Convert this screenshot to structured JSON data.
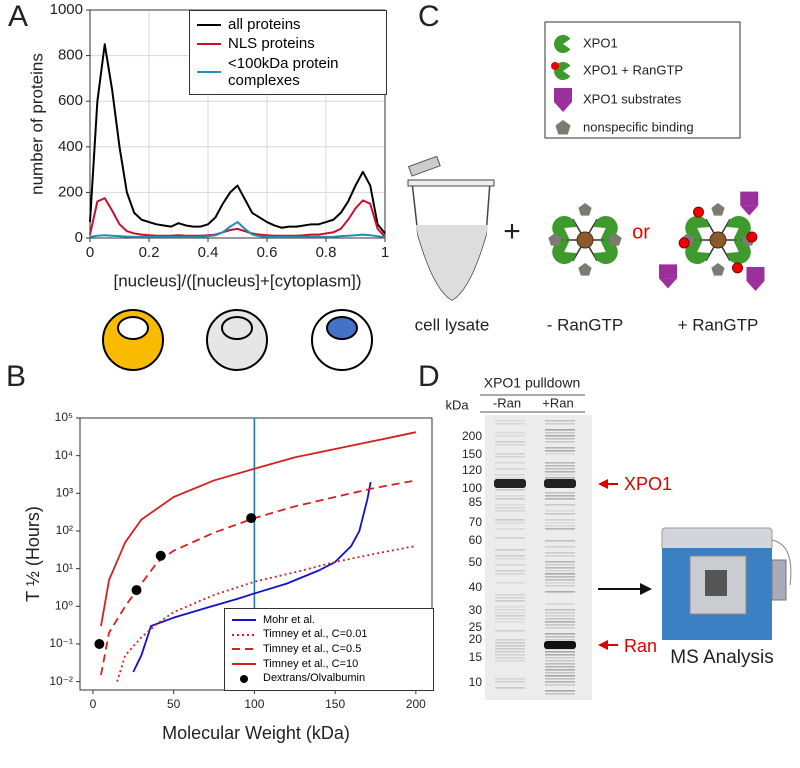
{
  "panel_labels": [
    "A",
    "B",
    "C",
    "D"
  ],
  "chart_data": [
    {
      "type": "line",
      "ylabel": "number of proteins",
      "xlabel": "[nucleus]/([nucleus]+[cytoplasm])",
      "x": [
        0,
        0.025,
        0.05,
        0.075,
        0.1,
        0.125,
        0.15,
        0.175,
        0.2,
        0.225,
        0.25,
        0.275,
        0.3,
        0.325,
        0.35,
        0.375,
        0.4,
        0.425,
        0.45,
        0.475,
        0.5,
        0.525,
        0.55,
        0.575,
        0.6,
        0.625,
        0.65,
        0.675,
        0.7,
        0.725,
        0.75,
        0.775,
        0.8,
        0.825,
        0.85,
        0.875,
        0.9,
        0.925,
        0.95,
        0.975,
        1
      ],
      "series": [
        {
          "name": "all proteins",
          "color": "#000000",
          "values": [
            70,
            600,
            850,
            650,
            400,
            200,
            110,
            80,
            70,
            60,
            55,
            50,
            65,
            55,
            50,
            50,
            60,
            90,
            150,
            200,
            230,
            170,
            110,
            90,
            70,
            55,
            45,
            50,
            50,
            55,
            60,
            60,
            70,
            80,
            110,
            160,
            230,
            290,
            230,
            60,
            20
          ]
        },
        {
          "name": "NLS proteins",
          "color": "#c8102e",
          "values": [
            15,
            160,
            175,
            120,
            60,
            30,
            20,
            15,
            12,
            10,
            10,
            10,
            12,
            10,
            10,
            10,
            12,
            15,
            25,
            35,
            40,
            30,
            20,
            15,
            12,
            10,
            10,
            10,
            10,
            12,
            15,
            15,
            20,
            25,
            40,
            80,
            130,
            165,
            150,
            40,
            5
          ]
        },
        {
          "name": "<100kDa protein complexes",
          "color": "#1f8fb4",
          "values": [
            5,
            10,
            12,
            10,
            8,
            6,
            5,
            5,
            5,
            5,
            5,
            5,
            5,
            5,
            5,
            5,
            8,
            12,
            25,
            50,
            70,
            40,
            15,
            8,
            5,
            5,
            5,
            5,
            5,
            5,
            5,
            5,
            5,
            5,
            8,
            10,
            12,
            15,
            12,
            8,
            3
          ]
        }
      ],
      "xlim": [
        0,
        1
      ],
      "ylim": [
        0,
        1000
      ],
      "xticks": [
        0,
        0.2,
        0.4,
        0.6,
        0.8,
        1
      ],
      "yticks": [
        0,
        200,
        400,
        600,
        800,
        1000
      ],
      "grid": true,
      "legend": "upper right"
    },
    {
      "type": "line",
      "ylabel": "T ½ (Hours)",
      "xlabel": "Molecular Weight (kDa)",
      "series": [
        {
          "name": "Mohr et al.",
          "color": "#1010d0",
          "style": "solid",
          "x": [
            25,
            30,
            36,
            50,
            70,
            90,
            100,
            120,
            140,
            150,
            160,
            165,
            170,
            172
          ],
          "values": [
            0.018,
            0.05,
            0.3,
            0.5,
            0.9,
            1.6,
            2.2,
            4,
            9,
            15,
            40,
            100,
            700,
            2000
          ]
        },
        {
          "name": "Timney et al., C=0.01",
          "color": "#d62020",
          "style": "dotted",
          "x": [
            15,
            20,
            30,
            40,
            50,
            75,
            100,
            125,
            150,
            175,
            200
          ],
          "values": [
            0.01,
            0.05,
            0.15,
            0.35,
            0.7,
            2,
            4.5,
            8,
            15,
            25,
            40
          ]
        },
        {
          "name": "Timney et al., C=0.5",
          "color": "#d62020",
          "style": "dashed",
          "x": [
            5,
            10,
            20,
            30,
            40,
            50,
            75,
            100,
            125,
            150,
            175,
            200
          ],
          "values": [
            0.015,
            0.2,
            1,
            4,
            15,
            30,
            90,
            220,
            450,
            800,
            1400,
            2200
          ]
        },
        {
          "name": "Timney et al., C=10",
          "color": "#d62020",
          "style": "solid",
          "x": [
            5,
            10,
            20,
            30,
            50,
            75,
            100,
            125,
            150,
            175,
            200
          ],
          "values": [
            0.3,
            5,
            50,
            200,
            800,
            2200,
            4500,
            9000,
            15000,
            25000,
            42000
          ]
        },
        {
          "name": "Dextrans/Olvalbumin",
          "color": "#000000",
          "style": "marker",
          "x": [
            4,
            27,
            42,
            98
          ],
          "values": [
            0.1,
            2.7,
            22,
            220
          ]
        }
      ],
      "xlim": [
        -8,
        210
      ],
      "ylim": [
        0.006,
        100000
      ],
      "ylog": true,
      "xticks": [
        0,
        50,
        100,
        150,
        200
      ],
      "yticks": [
        {
          "value": 0.01,
          "label": "10⁻²"
        },
        {
          "value": 0.1,
          "label": "10⁻¹"
        },
        {
          "value": 1,
          "label": "10⁰"
        },
        {
          "value": 10,
          "label": "10¹"
        },
        {
          "value": 100,
          "label": "10²"
        },
        {
          "value": 1000,
          "label": "10³"
        },
        {
          "value": 10000,
          "label": "10⁴"
        },
        {
          "value": 100000,
          "label": "10⁵"
        }
      ],
      "vline": {
        "x": 100,
        "color": "#1f77b4"
      },
      "grid": false,
      "legend": "lower right"
    }
  ],
  "panel_c": {
    "legend": [
      "XPO1",
      "XPO1 + RanGTP",
      "XPO1 substrates",
      "nonspecific binding"
    ],
    "plus": "+",
    "or": "or",
    "labels": [
      "cell lysate",
      "- RanGTP",
      "+ RanGTP"
    ]
  },
  "panel_d": {
    "title": "XPO1 pulldown",
    "kda": "kDa",
    "lanes": [
      "-Ran",
      "+Ran"
    ],
    "markers": [
      200,
      150,
      120,
      100,
      85,
      70,
      60,
      50,
      40,
      30,
      25,
      20,
      15,
      10
    ],
    "bands": [
      "XPO1",
      "Ran"
    ],
    "instrument": "MS Analysis"
  }
}
